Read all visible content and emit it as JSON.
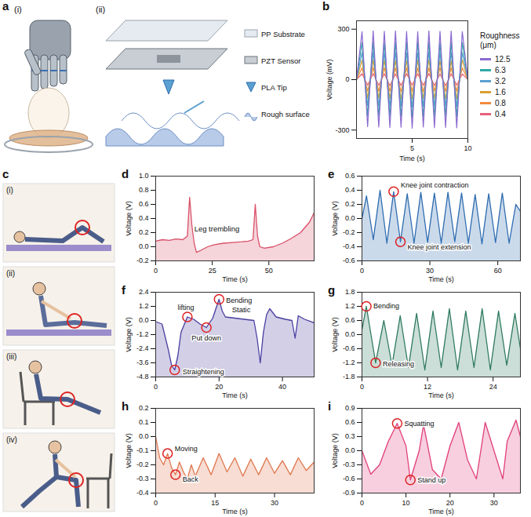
{
  "panels": {
    "a": {
      "label": "a",
      "sub_labels": [
        "(i)",
        "(ii)"
      ],
      "layers": [
        "PP Substrate",
        "PZT Sensor",
        "PLA Tip",
        "Rough surface"
      ]
    },
    "c": {
      "label": "c",
      "sub_labels": [
        "(i)",
        "(ii)",
        "(iii)",
        "(iv)"
      ]
    }
  },
  "chart_data": [
    {
      "panel": "b",
      "type": "line",
      "x_label": "Time (s)",
      "y_label": "Voltage (mV)",
      "legend_title": "Roughness (μm)",
      "legend": "right",
      "grid": false,
      "x": [
        0,
        0.5,
        1,
        1.5,
        2,
        2.5,
        3,
        3.5,
        4,
        4.5,
        5,
        5.5,
        6,
        6.5,
        7,
        7.5,
        8,
        8.5,
        9,
        9.5,
        10
      ],
      "xlim": [
        0,
        10
      ],
      "xticks": [
        5,
        10
      ],
      "ylim": [
        -350,
        350
      ],
      "yticks": [
        -300,
        0,
        300
      ],
      "series": [
        {
          "name": "0.4",
          "color": "#e8607a",
          "values": [
            0,
            35,
            -33,
            36,
            -34,
            35,
            -36,
            34,
            -35,
            36,
            -33,
            35,
            -34,
            36,
            -35,
            34,
            -36,
            35,
            -33,
            34,
            0
          ]
        },
        {
          "name": "0.8",
          "color": "#f08a3c",
          "values": [
            0,
            70,
            -68,
            72,
            -70,
            71,
            -69,
            70,
            -72,
            71,
            -70,
            69,
            -71,
            70,
            -68,
            72,
            -70,
            71,
            -69,
            70,
            0
          ]
        },
        {
          "name": "1.6",
          "color": "#d9a030",
          "values": [
            0,
            115,
            -110,
            118,
            -112,
            116,
            -114,
            115,
            -117,
            113,
            -115,
            116,
            -112,
            118,
            -114,
            115,
            -116,
            113,
            -115,
            117,
            0
          ]
        },
        {
          "name": "3.2",
          "color": "#5aa0d0",
          "values": [
            0,
            160,
            -155,
            165,
            -158,
            162,
            -160,
            164,
            -157,
            161,
            -163,
            160,
            -158,
            165,
            -160,
            162,
            -159,
            163,
            -161,
            160,
            0
          ]
        },
        {
          "name": "6.3",
          "color": "#2fa8a8",
          "values": [
            0,
            220,
            -215,
            225,
            -218,
            222,
            -220,
            224,
            -217,
            221,
            -223,
            220,
            -218,
            225,
            -220,
            222,
            -219,
            223,
            -221,
            220,
            0
          ]
        },
        {
          "name": "12.5",
          "color": "#8a6ad0",
          "values": [
            0,
            285,
            -280,
            290,
            -282,
            288,
            -285,
            290,
            -283,
            287,
            -289,
            285,
            -282,
            290,
            -286,
            288,
            -284,
            289,
            -287,
            285,
            0
          ]
        }
      ]
    },
    {
      "panel": "d",
      "type": "line",
      "x_label": "Time (s)",
      "y_label": "Voltage (V)",
      "color": "#d9536a",
      "grid": false,
      "x": [
        0,
        3,
        6,
        9,
        12,
        14,
        15,
        16,
        17,
        18,
        20,
        23,
        26,
        30,
        34,
        38,
        41,
        43,
        44,
        45,
        46,
        48,
        52,
        56,
        60,
        64,
        68,
        70
      ],
      "values": [
        0.08,
        0.1,
        0.09,
        0.11,
        0.1,
        0.15,
        0.7,
        0.3,
        0.05,
        -0.08,
        -0.05,
        0.0,
        0.03,
        0.05,
        0.06,
        0.07,
        0.08,
        0.1,
        0.6,
        0.15,
        0.0,
        -0.02,
        0.0,
        0.05,
        0.12,
        0.2,
        0.35,
        0.48
      ],
      "xlim": [
        0,
        70
      ],
      "xticks": [
        0,
        25,
        50
      ],
      "ylim": [
        -0.2,
        1.0
      ],
      "yticks": [
        -0.2,
        {
          "value": 0,
          "label": "0.0"
        },
        0.2,
        0.4,
        0.6,
        0.8,
        {
          "value": 1,
          "label": "1.0"
        }
      ],
      "annotations": [
        {
          "text": "Leg trembling",
          "x": 27,
          "y": 0.25
        }
      ],
      "callouts": []
    },
    {
      "panel": "e",
      "type": "line",
      "x_label": "Time (s)",
      "y_label": "Voltage (V)",
      "color": "#2f6db0",
      "grid": false,
      "x": [
        0,
        2,
        5,
        8,
        11,
        14,
        17,
        20,
        23,
        26,
        29,
        32,
        35,
        38,
        41,
        44,
        47,
        50,
        53,
        56,
        59,
        62,
        65,
        68,
        70
      ],
      "values": [
        0,
        0.32,
        -0.3,
        0.4,
        -0.35,
        0.38,
        -0.33,
        0.35,
        -0.35,
        0.37,
        -0.34,
        0.36,
        -0.35,
        0.37,
        -0.33,
        0.36,
        -0.35,
        0.34,
        -0.36,
        0.35,
        -0.34,
        0.36,
        -0.35,
        0.2,
        0.1
      ],
      "xlim": [
        0,
        70
      ],
      "xticks": [
        0,
        30,
        60
      ],
      "ylim": [
        -0.6,
        0.6
      ],
      "yticks": [
        -0.6,
        -0.4,
        -0.2,
        {
          "value": 0,
          "label": "0.0"
        },
        0.2,
        0.4,
        0.6
      ],
      "annotations": [],
      "callouts": [
        {
          "text": "Knee joint contraction",
          "x": 14,
          "y": 0.38
        },
        {
          "text": "Knee joint extension",
          "x": 17,
          "y": -0.33
        }
      ]
    },
    {
      "panel": "f",
      "type": "line",
      "x_label": "Time (s)",
      "y_label": "Voltage (V)",
      "color": "#4a3fa0",
      "grid": false,
      "x": [
        0,
        2,
        4,
        5,
        6,
        7,
        8,
        10,
        12,
        14,
        16,
        18,
        19,
        20,
        21,
        22,
        25,
        28,
        31,
        32,
        33,
        34,
        35,
        36,
        38,
        41,
        43,
        44,
        45,
        47,
        50
      ],
      "values": [
        -0.1,
        -0.3,
        -2.5,
        -3.8,
        -4.2,
        -3.0,
        -1.0,
        0.3,
        0.1,
        -0.3,
        -0.6,
        0.2,
        1.0,
        1.8,
        0.8,
        0.3,
        0.2,
        0.1,
        0.0,
        -1.5,
        -3.6,
        -1.0,
        0.5,
        1.0,
        0.3,
        0.1,
        0.0,
        -1.5,
        0.4,
        0.1,
        -0.2
      ],
      "xlim": [
        0,
        50
      ],
      "xticks": [
        0,
        20,
        40
      ],
      "ylim": [
        -4.8,
        2.4
      ],
      "yticks": [
        -4.8,
        -3.6,
        -2.4,
        -1.2,
        {
          "value": 0,
          "label": "0.0"
        },
        1.2,
        2.4
      ],
      "annotations": [
        {
          "text": "Static",
          "x": 27,
          "y": 0.9
        }
      ],
      "callouts": [
        {
          "text": "Straightening",
          "x": 6,
          "y": -4.2
        },
        {
          "text": "lifting",
          "x": 10,
          "y": 0.3
        },
        {
          "text": "Put down",
          "x": 16,
          "y": -0.6
        },
        {
          "text": "Bending",
          "x": 20,
          "y": 1.8
        }
      ]
    },
    {
      "panel": "g",
      "type": "line",
      "x_label": "Time (s)",
      "y_label": "Voltage (V)",
      "color": "#2e7a5e",
      "grid": false,
      "x": [
        0,
        0.8,
        2.5,
        4,
        5.5,
        7,
        8.5,
        10,
        11.5,
        13,
        14.5,
        16,
        17.5,
        19,
        20.5,
        22,
        23.5,
        25,
        26.5,
        28,
        29
      ],
      "values": [
        0.2,
        1.2,
        -1.2,
        0.6,
        -1.3,
        0.8,
        -1.4,
        0.9,
        -1.5,
        1.0,
        -1.4,
        1.1,
        -1.5,
        1.0,
        -1.4,
        1.1,
        -1.5,
        1.0,
        -1.3,
        0.9,
        -0.6
      ],
      "xlim": [
        0,
        29
      ],
      "xticks": [
        0,
        12,
        24
      ],
      "ylim": [
        -1.8,
        1.8
      ],
      "yticks": [
        -1.8,
        -1.2,
        -0.6,
        {
          "value": 0,
          "label": "0.0"
        },
        0.6,
        1.2,
        1.8
      ],
      "annotations": [],
      "callouts": [
        {
          "text": "Bending",
          "x": 0.8,
          "y": 1.2
        },
        {
          "text": "Releasing",
          "x": 2.5,
          "y": -1.2
        }
      ]
    },
    {
      "panel": "h",
      "type": "line",
      "x_label": "Time (s)",
      "y_label": "Voltage (V)",
      "color": "#e07850",
      "grid": false,
      "x": [
        0,
        1,
        2,
        3,
        4,
        5,
        6,
        7,
        8,
        9,
        10,
        12,
        14,
        16,
        18,
        20,
        22,
        24,
        26,
        28,
        30,
        32,
        34,
        36,
        38,
        40
      ],
      "values": [
        0.0,
        -0.15,
        -0.2,
        -0.12,
        -0.22,
        -0.27,
        -0.18,
        -0.25,
        -0.3,
        -0.2,
        -0.28,
        -0.15,
        -0.27,
        -0.12,
        -0.25,
        -0.15,
        -0.28,
        -0.16,
        -0.27,
        -0.15,
        -0.26,
        -0.17,
        -0.27,
        -0.15,
        -0.24,
        -0.18
      ],
      "xlim": [
        0,
        40
      ],
      "xticks": [
        0,
        15,
        30
      ],
      "ylim": [
        -0.4,
        0.2
      ],
      "yticks": [
        -0.4,
        -0.3,
        -0.2,
        -0.1,
        {
          "value": 0,
          "label": "0.0"
        },
        0.1,
        0.2
      ],
      "annotations": [],
      "callouts": [
        {
          "text": "Moving",
          "x": 3,
          "y": -0.12
        },
        {
          "text": "Back",
          "x": 5,
          "y": -0.27
        }
      ]
    },
    {
      "panel": "i",
      "type": "line",
      "x_label": "Time (s)",
      "y_label": "Voltage (V)",
      "color": "#e0407a",
      "grid": false,
      "x": [
        0,
        2,
        4,
        6,
        8,
        10,
        11,
        13,
        14,
        16,
        18,
        20,
        22,
        24,
        26,
        28,
        30,
        32,
        33,
        35,
        36
      ],
      "values": [
        0.0,
        -0.5,
        -0.3,
        0.2,
        0.58,
        0.1,
        -0.62,
        0.0,
        0.55,
        -0.4,
        -0.6,
        0.1,
        0.6,
        -0.2,
        -0.6,
        0.6,
        0.0,
        -0.6,
        0.2,
        0.65,
        0.3
      ],
      "xlim": [
        0,
        36
      ],
      "xticks": [
        0,
        10,
        20,
        30
      ],
      "ylim": [
        -0.9,
        0.9
      ],
      "yticks": [
        -0.9,
        -0.6,
        -0.3,
        {
          "value": 0,
          "label": "0.0"
        },
        0.3,
        0.6,
        0.9
      ],
      "annotations": [],
      "callouts": [
        {
          "text": "Squatting",
          "x": 8,
          "y": 0.58
        },
        {
          "text": "Stand up",
          "x": 11,
          "y": -0.62
        }
      ]
    }
  ]
}
